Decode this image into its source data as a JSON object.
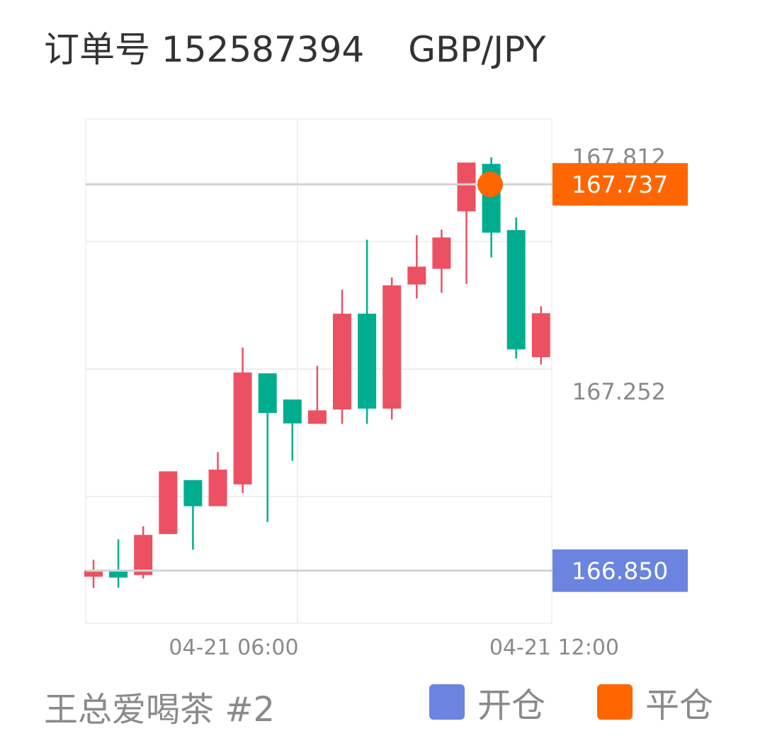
{
  "header": {
    "order": "订单号 152587394",
    "symbol": "GBP/JPY"
  },
  "footer": {
    "user": "王总爱喝茶 #2"
  },
  "legend": [
    {
      "label": "开仓",
      "color": "#6a84e0"
    },
    {
      "label": "平仓",
      "color": "#ff6600"
    }
  ],
  "colors": {
    "up": "#00ad8f",
    "down": "#eb5162",
    "grid": "#eeeeee",
    "axis_text": "#8a8a8a"
  },
  "chart_data": {
    "type": "candlestick",
    "x_tick_labels": [
      "04-21 06:00",
      "04-21 12:00"
    ],
    "y_tick_labels": [
      "167.812",
      "167.252"
    ],
    "open_price": {
      "label": "166.850",
      "value": 166.85,
      "color": "#6a84e0"
    },
    "close_price": {
      "label": "167.737",
      "value": 167.737,
      "color": "#ff6600"
    },
    "candles": [
      {
        "open": 166.85,
        "high": 166.875,
        "low": 166.81,
        "close": 166.836,
        "dir": "down"
      },
      {
        "open": 166.834,
        "high": 166.922,
        "low": 166.811,
        "close": 166.852,
        "dir": "up"
      },
      {
        "open": 166.932,
        "high": 166.952,
        "low": 166.832,
        "close": 166.84,
        "dir": "down"
      },
      {
        "open": 167.078,
        "high": 167.078,
        "low": 166.934,
        "close": 166.934,
        "dir": "down"
      },
      {
        "open": 166.998,
        "high": 167.058,
        "low": 166.898,
        "close": 167.058,
        "dir": "up"
      },
      {
        "open": 167.082,
        "high": 167.122,
        "low": 166.998,
        "close": 166.998,
        "dir": "down"
      },
      {
        "open": 167.305,
        "high": 167.362,
        "low": 167.028,
        "close": 167.048,
        "dir": "down"
      },
      {
        "open": 167.212,
        "high": 167.303,
        "low": 166.962,
        "close": 167.303,
        "dir": "up"
      },
      {
        "open": 167.188,
        "high": 167.243,
        "low": 167.102,
        "close": 167.243,
        "dir": "up"
      },
      {
        "open": 167.218,
        "high": 167.32,
        "low": 167.187,
        "close": 167.187,
        "dir": "down"
      },
      {
        "open": 167.44,
        "high": 167.495,
        "low": 167.187,
        "close": 167.22,
        "dir": "down"
      },
      {
        "open": 167.222,
        "high": 167.61,
        "low": 167.187,
        "close": 167.44,
        "dir": "up"
      },
      {
        "open": 167.505,
        "high": 167.523,
        "low": 167.197,
        "close": 167.222,
        "dir": "down"
      },
      {
        "open": 167.548,
        "high": 167.62,
        "low": 167.475,
        "close": 167.507,
        "dir": "down"
      },
      {
        "open": 167.615,
        "high": 167.633,
        "low": 167.488,
        "close": 167.543,
        "dir": "down"
      },
      {
        "open": 167.787,
        "high": 167.787,
        "low": 167.508,
        "close": 167.675,
        "dir": "down"
      },
      {
        "open": 167.626,
        "high": 167.799,
        "low": 167.569,
        "close": 167.784,
        "dir": "up"
      },
      {
        "open": 167.358,
        "high": 167.661,
        "low": 167.337,
        "close": 167.632,
        "dir": "up"
      },
      {
        "open": 167.441,
        "high": 167.457,
        "low": 167.323,
        "close": 167.34,
        "dir": "down"
      }
    ]
  }
}
